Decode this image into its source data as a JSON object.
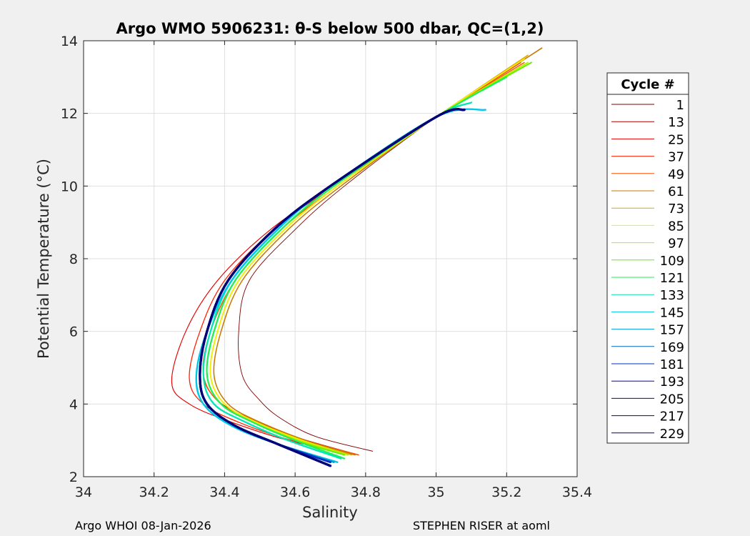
{
  "chart_data": {
    "type": "line",
    "title": "Argo WMO 5906231: θ-S below 500 dbar,  QC=(1,2)",
    "xlabel": "Salinity",
    "ylabel": "Potential Temperature (°C)",
    "xlim": [
      34,
      35.4
    ],
    "ylim": [
      2,
      14
    ],
    "x_ticks": [
      "34",
      "34.2",
      "34.4",
      "34.6",
      "34.8",
      "35",
      "35.2",
      "35.4"
    ],
    "y_ticks": [
      "2",
      "4",
      "6",
      "8",
      "10",
      "12",
      "14"
    ],
    "grid": true,
    "legend_title": "Cycle #",
    "legend_position": "outside-right",
    "series": [
      {
        "name": "1",
        "color": "#800000",
        "x": [
          35.25,
          35.0,
          34.74,
          34.6,
          34.47,
          34.44,
          34.45,
          34.5,
          34.56,
          34.66,
          34.82
        ],
        "y": [
          13.5,
          11.9,
          10.0,
          8.8,
          7.4,
          6.0,
          4.8,
          4.1,
          3.6,
          3.1,
          2.7
        ]
      },
      {
        "name": "13",
        "color": "#b40000",
        "x": [
          35.24,
          35.0,
          34.72,
          34.56,
          34.43,
          34.36,
          34.34,
          34.38,
          34.47,
          34.6,
          34.78
        ],
        "y": [
          13.4,
          11.9,
          10.0,
          8.8,
          7.4,
          6.0,
          4.8,
          4.1,
          3.6,
          3.1,
          2.6
        ]
      },
      {
        "name": "25",
        "color": "#e60000",
        "x": [
          35.24,
          35.0,
          34.71,
          34.53,
          34.38,
          34.29,
          34.25,
          34.3,
          34.42,
          34.58,
          34.77
        ],
        "y": [
          13.4,
          11.9,
          10.0,
          8.8,
          7.4,
          6.0,
          4.6,
          4.0,
          3.5,
          3.0,
          2.6
        ]
      },
      {
        "name": "37",
        "color": "#ff2000",
        "x": [
          35.24,
          35.0,
          34.71,
          34.54,
          34.4,
          34.33,
          34.3,
          34.34,
          34.44,
          34.59,
          34.78
        ],
        "y": [
          13.4,
          11.9,
          10.0,
          8.8,
          7.4,
          6.0,
          4.7,
          4.0,
          3.5,
          3.0,
          2.6
        ]
      },
      {
        "name": "49",
        "color": "#ff5000",
        "x": [
          35.25,
          35.0,
          34.72,
          34.56,
          34.43,
          34.36,
          34.34,
          34.39,
          34.5,
          34.63,
          34.78
        ],
        "y": [
          13.4,
          11.9,
          10.0,
          8.8,
          7.4,
          6.0,
          4.8,
          4.0,
          3.5,
          3.0,
          2.6
        ]
      },
      {
        "name": "61",
        "color": "#c87800",
        "x": [
          35.3,
          35.0,
          34.73,
          34.58,
          34.45,
          34.39,
          34.37,
          34.41,
          34.5,
          34.63,
          34.77
        ],
        "y": [
          13.8,
          11.9,
          10.0,
          8.8,
          7.4,
          6.0,
          4.8,
          4.0,
          3.5,
          3.0,
          2.6
        ]
      },
      {
        "name": "73",
        "color": "#dcaa00",
        "x": [
          35.26,
          35.0,
          34.72,
          34.57,
          34.44,
          34.38,
          34.36,
          34.4,
          34.49,
          34.62,
          34.76
        ],
        "y": [
          13.6,
          11.9,
          10.0,
          8.8,
          7.4,
          6.0,
          4.8,
          4.0,
          3.5,
          3.0,
          2.6
        ]
      },
      {
        "name": "85",
        "color": "#f0f000",
        "x": [
          35.25,
          35.0,
          34.72,
          34.57,
          34.44,
          34.38,
          34.36,
          34.4,
          34.49,
          34.62,
          34.75
        ],
        "y": [
          13.5,
          11.9,
          10.0,
          8.8,
          7.4,
          6.0,
          4.8,
          4.0,
          3.5,
          3.0,
          2.6
        ]
      },
      {
        "name": "97",
        "color": "#b4f000",
        "x": [
          35.26,
          35.0,
          34.71,
          34.56,
          34.43,
          34.37,
          34.35,
          34.39,
          34.48,
          34.61,
          34.75
        ],
        "y": [
          13.4,
          11.9,
          10.0,
          8.8,
          7.4,
          6.0,
          4.8,
          4.0,
          3.5,
          3.0,
          2.6
        ]
      },
      {
        "name": "109",
        "color": "#64f000",
        "x": [
          35.27,
          35.0,
          34.71,
          34.56,
          34.43,
          34.37,
          34.35,
          34.39,
          34.48,
          34.6,
          34.74
        ],
        "y": [
          13.4,
          11.9,
          10.0,
          8.8,
          7.4,
          6.0,
          4.8,
          4.0,
          3.5,
          3.0,
          2.6
        ]
      },
      {
        "name": "121",
        "color": "#1ef05a",
        "x": [
          35.2,
          35.0,
          34.71,
          34.56,
          34.43,
          34.37,
          34.35,
          34.39,
          34.48,
          34.6,
          34.74
        ],
        "y": [
          13.0,
          11.9,
          10.0,
          8.8,
          7.4,
          6.0,
          4.8,
          4.0,
          3.5,
          3.0,
          2.5
        ]
      },
      {
        "name": "133",
        "color": "#00e6b4",
        "x": [
          35.1,
          35.0,
          34.7,
          34.55,
          34.42,
          34.36,
          34.34,
          34.37,
          34.46,
          34.58,
          34.73
        ],
        "y": [
          12.3,
          11.9,
          10.0,
          8.8,
          7.4,
          6.0,
          4.8,
          4.0,
          3.5,
          3.0,
          2.5
        ]
      },
      {
        "name": "145",
        "color": "#00c8e6",
        "x": [
          35.14,
          35.0,
          34.7,
          34.55,
          34.42,
          34.35,
          34.32,
          34.34,
          34.42,
          34.55,
          34.72
        ],
        "y": [
          12.1,
          11.9,
          10.0,
          8.8,
          7.4,
          6.0,
          4.8,
          4.0,
          3.4,
          2.9,
          2.4
        ]
      },
      {
        "name": "157",
        "color": "#0096dc",
        "x": [
          35.08,
          35.0,
          34.7,
          34.54,
          34.41,
          34.35,
          34.33,
          34.35,
          34.43,
          34.55,
          34.71
        ],
        "y": [
          12.1,
          11.9,
          10.0,
          8.8,
          7.4,
          6.0,
          4.8,
          4.0,
          3.4,
          2.9,
          2.4
        ]
      },
      {
        "name": "169",
        "color": "#0064b4",
        "x": [
          35.08,
          35.0,
          34.7,
          34.54,
          34.41,
          34.35,
          34.33,
          34.35,
          34.43,
          34.55,
          34.7
        ],
        "y": [
          12.1,
          11.9,
          10.0,
          8.8,
          7.4,
          6.0,
          4.8,
          4.0,
          3.4,
          2.9,
          2.4
        ]
      },
      {
        "name": "181",
        "color": "#0032c8",
        "x": [
          35.08,
          35.0,
          34.7,
          34.54,
          34.41,
          34.35,
          34.33,
          34.35,
          34.43,
          34.55,
          34.7
        ],
        "y": [
          12.1,
          11.9,
          10.0,
          8.8,
          7.4,
          6.0,
          4.8,
          4.0,
          3.4,
          2.9,
          2.4
        ]
      },
      {
        "name": "193",
        "color": "#0000dc",
        "x": [
          35.08,
          35.0,
          34.7,
          34.54,
          34.41,
          34.35,
          34.33,
          34.35,
          34.43,
          34.55,
          34.7
        ],
        "y": [
          12.1,
          11.9,
          10.0,
          8.8,
          7.4,
          6.0,
          4.8,
          4.0,
          3.4,
          2.9,
          2.3
        ]
      },
      {
        "name": "205",
        "color": "#0000b4",
        "x": [
          35.08,
          35.0,
          34.7,
          34.54,
          34.41,
          34.35,
          34.33,
          34.35,
          34.43,
          34.55,
          34.7
        ],
        "y": [
          12.1,
          11.9,
          10.0,
          8.8,
          7.4,
          6.0,
          4.8,
          4.0,
          3.4,
          2.9,
          2.3
        ]
      },
      {
        "name": "217",
        "color": "#000096",
        "x": [
          35.08,
          35.0,
          34.7,
          34.54,
          34.41,
          34.35,
          34.33,
          34.35,
          34.43,
          34.55,
          34.7
        ],
        "y": [
          12.1,
          11.9,
          10.0,
          8.8,
          7.4,
          6.0,
          4.8,
          4.0,
          3.4,
          2.9,
          2.3
        ]
      },
      {
        "name": "229",
        "color": "#000078",
        "x": [
          35.08,
          35.0,
          34.7,
          34.54,
          34.41,
          34.35,
          34.33,
          34.35,
          34.43,
          34.55,
          34.7
        ],
        "y": [
          12.1,
          11.9,
          10.0,
          8.8,
          7.4,
          6.0,
          4.8,
          4.0,
          3.4,
          2.9,
          2.3
        ]
      }
    ]
  },
  "footer": {
    "left": "Argo WHOI 08-Jan-2026",
    "right": "STEPHEN RISER at aoml"
  }
}
